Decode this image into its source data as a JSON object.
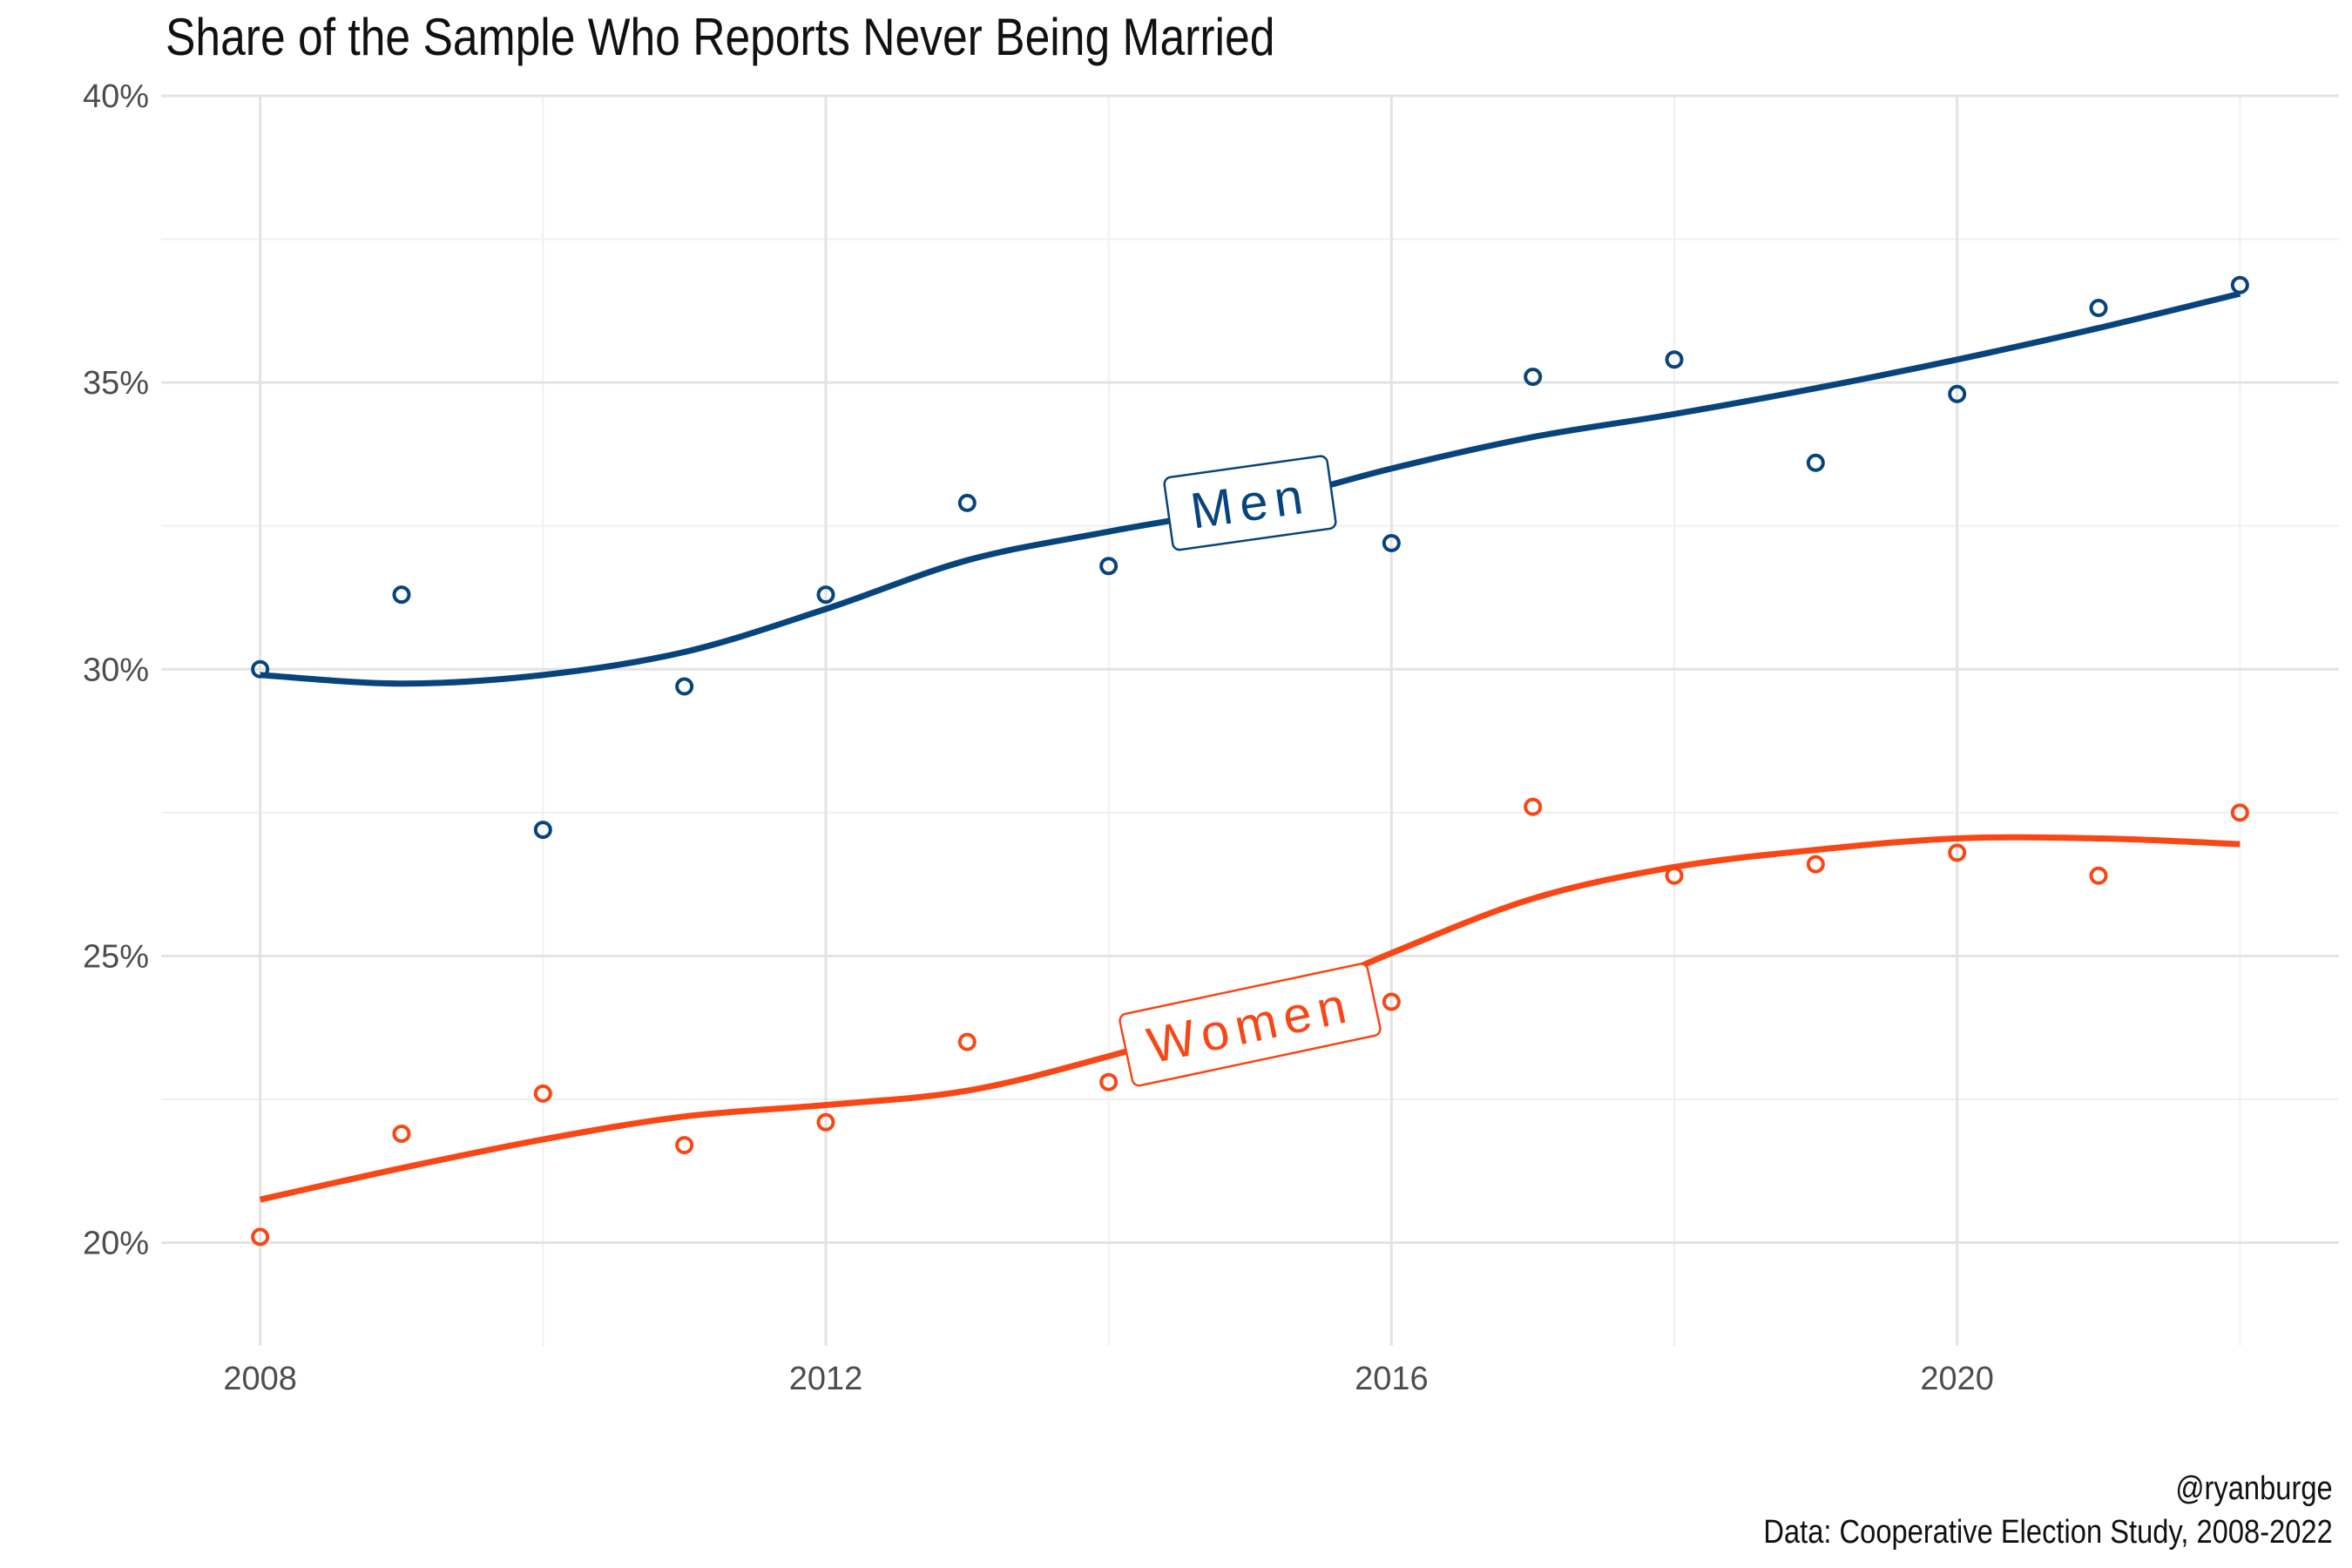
{
  "chart_data": {
    "type": "line",
    "title": "Share of the Sample Who Reports Never Being Married",
    "xlabel": "",
    "ylabel": "",
    "x": [
      2008,
      2009,
      2010,
      2011,
      2012,
      2013,
      2014,
      2015,
      2016,
      2017,
      2018,
      2019,
      2020,
      2021,
      2022
    ],
    "xlim": [
      2007.3,
      2022.7
    ],
    "ylim": [
      18.2,
      40
    ],
    "x_ticks": [
      2008,
      2012,
      2016,
      2020
    ],
    "x_tick_labels": [
      "2008",
      "2012",
      "2016",
      "2020"
    ],
    "y_ticks": [
      20,
      25,
      30,
      35,
      40
    ],
    "y_tick_labels": [
      "20%",
      "25%",
      "30%",
      "35%",
      "40%"
    ],
    "grid": true,
    "series": [
      {
        "name": "Men",
        "color": "#08447c",
        "points": [
          {
            "x": 2008,
            "y": 30.0
          },
          {
            "x": 2009,
            "y": 31.3
          },
          {
            "x": 2010,
            "y": 27.2
          },
          {
            "x": 2011,
            "y": 29.7
          },
          {
            "x": 2012,
            "y": 31.3
          },
          {
            "x": 2013,
            "y": 32.9
          },
          {
            "x": 2014,
            "y": 31.8
          },
          {
            "x": 2016,
            "y": 32.2
          },
          {
            "x": 2017,
            "y": 35.1
          },
          {
            "x": 2018,
            "y": 35.4
          },
          {
            "x": 2019,
            "y": 33.6
          },
          {
            "x": 2020,
            "y": 34.8
          },
          {
            "x": 2021,
            "y": 36.3
          },
          {
            "x": 2022,
            "y": 36.7
          }
        ],
        "trend": [
          [
            2008,
            29.9
          ],
          [
            2009,
            29.75
          ],
          [
            2010,
            29.9
          ],
          [
            2011,
            30.3
          ],
          [
            2012,
            31.05
          ],
          [
            2013,
            31.9
          ],
          [
            2014,
            32.4
          ],
          [
            2015,
            32.85
          ],
          [
            2016,
            33.5
          ],
          [
            2017,
            34.05
          ],
          [
            2018,
            34.45
          ],
          [
            2019,
            34.9
          ],
          [
            2020,
            35.4
          ],
          [
            2021,
            35.95
          ],
          [
            2022,
            36.55
          ]
        ],
        "label_at": {
          "x": 2015.0,
          "y": 32.9,
          "angle": -8
        }
      },
      {
        "name": "Women",
        "color": "#f74716",
        "points": [
          {
            "x": 2008,
            "y": 20.1
          },
          {
            "x": 2009,
            "y": 21.9
          },
          {
            "x": 2010,
            "y": 22.6
          },
          {
            "x": 2011,
            "y": 21.7
          },
          {
            "x": 2012,
            "y": 22.1
          },
          {
            "x": 2013,
            "y": 23.5
          },
          {
            "x": 2014,
            "y": 22.8
          },
          {
            "x": 2016,
            "y": 24.2
          },
          {
            "x": 2017,
            "y": 27.6
          },
          {
            "x": 2018,
            "y": 26.4
          },
          {
            "x": 2019,
            "y": 26.6
          },
          {
            "x": 2020,
            "y": 26.8
          },
          {
            "x": 2021,
            "y": 26.4
          },
          {
            "x": 2022,
            "y": 27.5
          }
        ],
        "trend": [
          [
            2008,
            20.75
          ],
          [
            2009,
            21.3
          ],
          [
            2010,
            21.8
          ],
          [
            2011,
            22.2
          ],
          [
            2012,
            22.4
          ],
          [
            2013,
            22.65
          ],
          [
            2014,
            23.25
          ],
          [
            2015,
            24.0
          ],
          [
            2016,
            25.05
          ],
          [
            2017,
            26.0
          ],
          [
            2018,
            26.55
          ],
          [
            2019,
            26.85
          ],
          [
            2020,
            27.05
          ],
          [
            2021,
            27.05
          ],
          [
            2022,
            26.95
          ]
        ],
        "label_at": {
          "x": 2015.0,
          "y": 23.8,
          "angle": -12
        }
      }
    ]
  },
  "caption": {
    "handle": "@ryanburge",
    "source": "Data: Cooperative Election Study, 2008-2022"
  }
}
